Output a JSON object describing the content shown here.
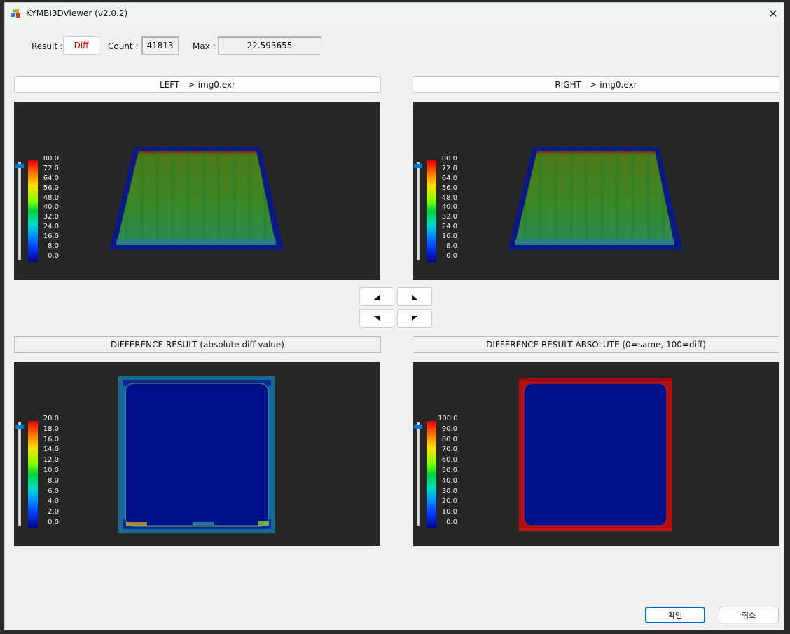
{
  "window": {
    "title": "KYMBI3DViewer (v2.0.2)",
    "close_glyph": "✕"
  },
  "summary": {
    "result_label": "Result :",
    "result_value": "Diff",
    "result_color": "#e00000",
    "count_label": "Count :",
    "count_value": "41813",
    "max_label": "Max :",
    "max_value": "22.593655"
  },
  "panels": {
    "left": {
      "header": "LEFT --> img0.exr",
      "ticks": [
        "80.0",
        "72.0",
        "64.0",
        "56.0",
        "48.0",
        "40.0",
        "32.0",
        "24.0",
        "16.0",
        "8.0",
        "0.0"
      ]
    },
    "right": {
      "header": "RIGHT --> img0.exr",
      "ticks": [
        "80.0",
        "72.0",
        "64.0",
        "56.0",
        "48.0",
        "40.0",
        "32.0",
        "24.0",
        "16.0",
        "8.0",
        "0.0"
      ]
    },
    "diff": {
      "header": "DIFFERENCE RESULT (absolute diff value)",
      "ticks": [
        "20.0",
        "18.0",
        "16.0",
        "14.0",
        "12.0",
        "10.0",
        "8.0",
        "6.0",
        "4.0",
        "2.0",
        "0.0"
      ]
    },
    "abs": {
      "header": "DIFFERENCE RESULT ABSOLUTE (0=same, 100=diff)",
      "ticks": [
        "100.0",
        "90.0",
        "80.0",
        "70.0",
        "60.0",
        "50.0",
        "40.0",
        "30.0",
        "20.0",
        "10.0",
        "0.0"
      ]
    }
  },
  "nav": {
    "icons": [
      "rotate-up-left-icon",
      "rotate-up-right-icon",
      "rotate-down-left-icon",
      "rotate-down-right-icon"
    ]
  },
  "buttons": {
    "ok": "확인",
    "cancel": "취소"
  },
  "colors": {
    "viewport_bg": "#272727",
    "accent": "#0078d4",
    "field_red": "#e00000"
  }
}
